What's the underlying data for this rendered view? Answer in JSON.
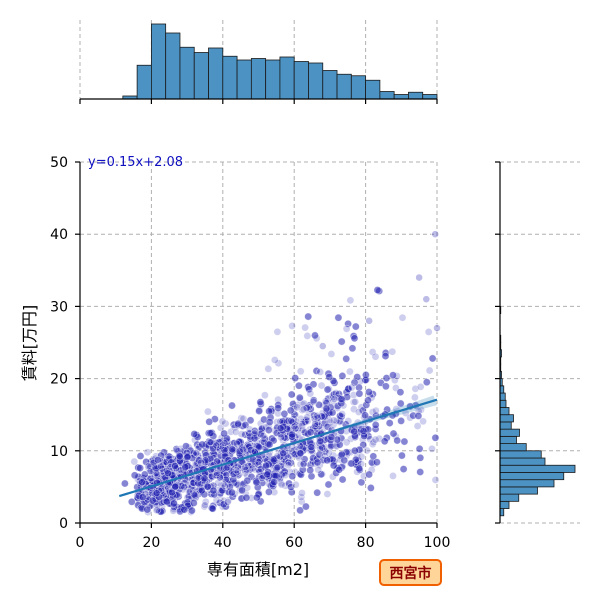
{
  "chart_data": {
    "type": "scatter",
    "xlabel": "専有面積[m2]",
    "ylabel": "賃料[万円]",
    "xlim": [
      0,
      100
    ],
    "ylim": [
      0,
      50
    ],
    "x_ticks": [
      0,
      20,
      40,
      60,
      80,
      100
    ],
    "y_ticks": [
      0,
      10,
      20,
      30,
      40,
      50
    ],
    "grid": true,
    "annotation": "y=0.15x+2.08",
    "badge": "西宮市",
    "regression": {
      "slope": 0.15,
      "intercept": 2.08,
      "x_range": [
        11,
        100
      ]
    },
    "point_color": "#2020b0",
    "line_color": "#1f77b4",
    "hist_color": "#4c92c3",
    "x_hist": {
      "bin_edges": [
        0,
        4,
        8,
        12,
        16,
        20,
        24,
        28,
        32,
        36,
        40,
        44,
        48,
        52,
        56,
        60,
        64,
        68,
        72,
        76,
        80,
        84,
        88,
        92,
        96,
        100
      ],
      "counts": [
        0,
        0,
        0,
        0.04,
        0.45,
        1.0,
        0.88,
        0.69,
        0.62,
        0.68,
        0.57,
        0.52,
        0.54,
        0.52,
        0.56,
        0.5,
        0.48,
        0.38,
        0.33,
        0.31,
        0.25,
        0.1,
        0.06,
        0.09,
        0.06
      ]
    },
    "y_hist": {
      "bin_edges": [
        1,
        2,
        3,
        4,
        5,
        6,
        7,
        8,
        9,
        10,
        11,
        12,
        13,
        14,
        15,
        16,
        17,
        18,
        19,
        20,
        21,
        22,
        23,
        24,
        25,
        26,
        27,
        28,
        29,
        30
      ],
      "counts": [
        0.05,
        0.12,
        0.25,
        0.5,
        0.72,
        0.85,
        1.0,
        0.6,
        0.55,
        0.35,
        0.22,
        0.26,
        0.15,
        0.18,
        0.12,
        0.08,
        0.07,
        0.05,
        0.03,
        0.02,
        0.01,
        0.01,
        0.02,
        0.01,
        0.01,
        0.0,
        0.0,
        0.0,
        0.01
      ]
    }
  }
}
